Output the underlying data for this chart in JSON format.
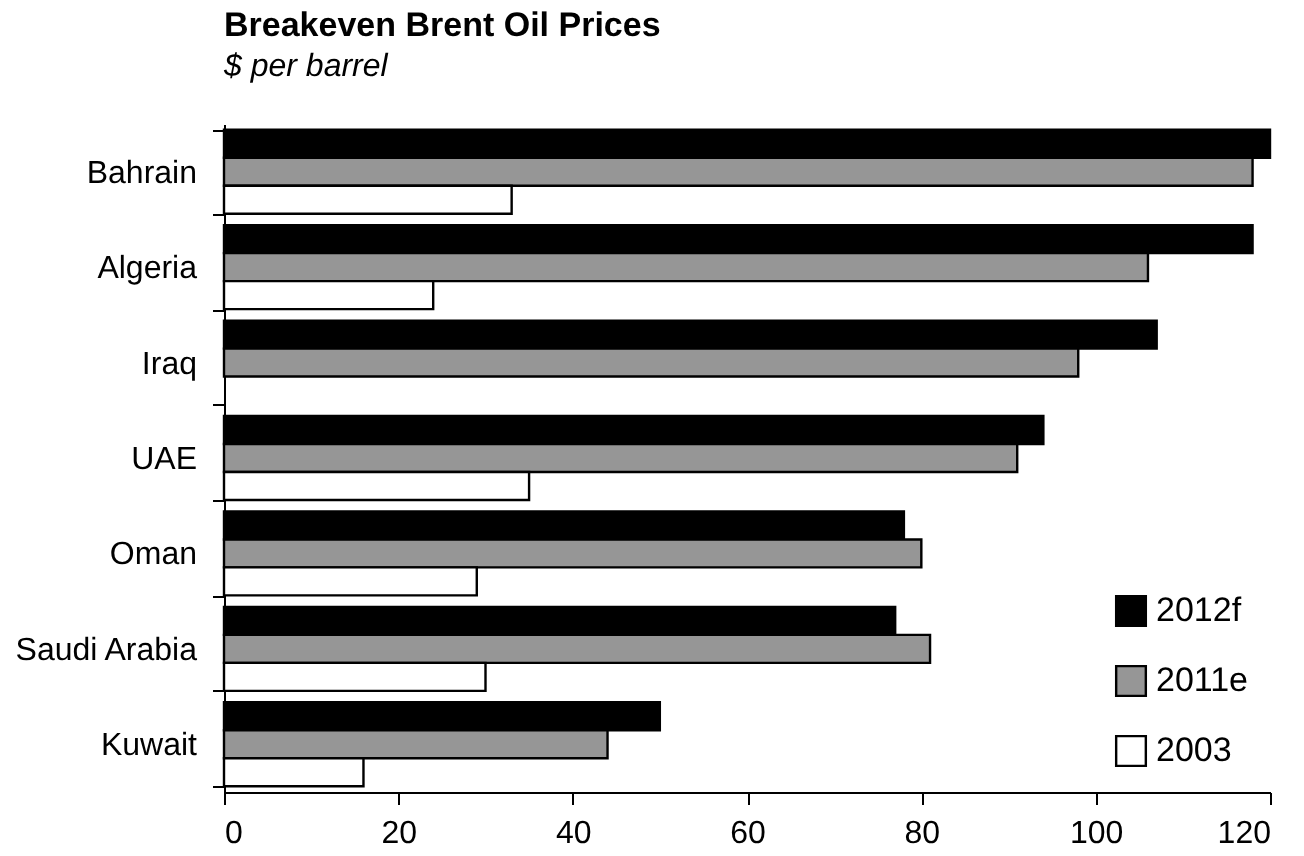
{
  "chart_data": {
    "type": "bar",
    "orientation": "horizontal",
    "title": "Breakeven Brent Oil Prices",
    "subtitle": "$ per barrel",
    "categories": [
      "Bahrain",
      "Algeria",
      "Iraq",
      "UAE",
      "Oman",
      "Saudi Arabia",
      "Kuwait"
    ],
    "series": [
      {
        "name": "2012f",
        "color": "#000000",
        "values": [
          120,
          118,
          107,
          94,
          78,
          77,
          50
        ]
      },
      {
        "name": "2011e",
        "color": "#969696",
        "values": [
          118,
          106,
          98,
          91,
          80,
          81,
          44
        ]
      },
      {
        "name": "2003",
        "color": "#ffffff",
        "values": [
          33,
          24,
          null,
          35,
          29,
          30,
          16
        ]
      }
    ],
    "xlim": [
      0,
      120
    ],
    "xticks": [
      0,
      20,
      40,
      60,
      80,
      100,
      120
    ],
    "grid": false,
    "legend": "bottom right"
  }
}
